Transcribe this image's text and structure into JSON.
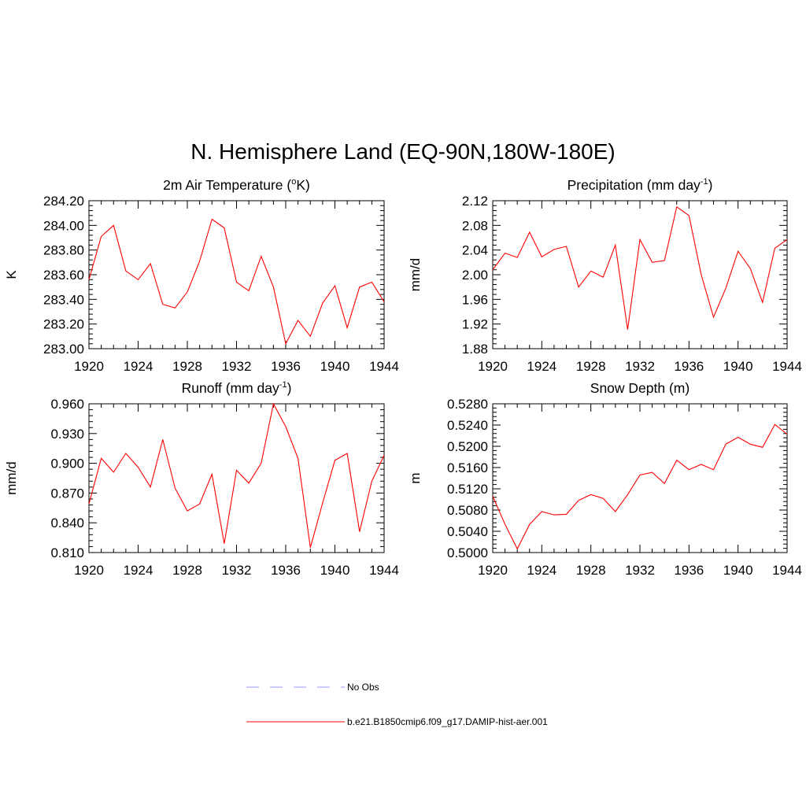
{
  "title": "N. Hemisphere Land (EQ-90N,180W-180E)",
  "colors": {
    "model_line": "#ff0000",
    "obs_line": "#9999ff",
    "axes": "#000000"
  },
  "legend": {
    "entries": [
      {
        "label": "No Obs",
        "style": "dashed",
        "color": "#9999ff"
      },
      {
        "label": "b.e21.B1850cmip6.f09_g17.DAMIP-hist-aer.001",
        "style": "solid",
        "color": "#ff0000"
      }
    ]
  },
  "chart_data": [
    {
      "type": "line",
      "title_parts": [
        "2m Air Temperature (",
        "o",
        "K)"
      ],
      "ylabel": "K",
      "xlim": [
        1920,
        1944
      ],
      "ylim": [
        283.0,
        284.2
      ],
      "xticks": [
        1920,
        1924,
        1928,
        1932,
        1936,
        1940,
        1944
      ],
      "yticks": [
        283.0,
        283.2,
        283.4,
        283.6,
        283.8,
        284.0,
        284.2
      ],
      "ytick_labels": [
        "283.00",
        "283.20",
        "283.40",
        "283.60",
        "283.80",
        "284.00",
        "284.20"
      ],
      "x": [
        1920,
        1921,
        1922,
        1923,
        1924,
        1925,
        1926,
        1927,
        1928,
        1929,
        1930,
        1931,
        1932,
        1933,
        1934,
        1935,
        1936,
        1937,
        1938,
        1939,
        1940,
        1941,
        1942,
        1943,
        1944
      ],
      "series": [
        {
          "name": "b.e21.B1850cmip6.f09_g17.DAMIP-hist-aer.001",
          "values": [
            283.56,
            283.91,
            284.0,
            283.63,
            283.56,
            283.69,
            283.36,
            283.33,
            283.46,
            283.71,
            284.05,
            283.98,
            283.54,
            283.47,
            283.75,
            283.5,
            283.04,
            283.23,
            283.1,
            283.37,
            283.51,
            283.17,
            283.5,
            283.54,
            283.38
          ]
        }
      ]
    },
    {
      "type": "line",
      "title_parts": [
        "Precipitation (mm day",
        "-1",
        ")"
      ],
      "ylabel": "mm/d",
      "xlim": [
        1920,
        1944
      ],
      "ylim": [
        1.88,
        2.12
      ],
      "xticks": [
        1920,
        1924,
        1928,
        1932,
        1936,
        1940,
        1944
      ],
      "yticks": [
        1.88,
        1.92,
        1.96,
        2.0,
        2.04,
        2.08,
        2.12
      ],
      "ytick_labels": [
        "1.88",
        "1.92",
        "1.96",
        "2.00",
        "2.04",
        "2.08",
        "2.12"
      ],
      "x": [
        1920,
        1921,
        1922,
        1923,
        1924,
        1925,
        1926,
        1927,
        1928,
        1929,
        1930,
        1931,
        1932,
        1933,
        1934,
        1935,
        1936,
        1937,
        1938,
        1939,
        1940,
        1941,
        1942,
        1943,
        1944
      ],
      "series": [
        {
          "name": "b.e21.B1850cmip6.f09_g17.DAMIP-hist-aer.001",
          "values": [
            2.008,
            2.035,
            2.028,
            2.069,
            2.029,
            2.041,
            2.046,
            1.98,
            2.006,
            1.996,
            2.048,
            1.911,
            2.057,
            2.02,
            2.023,
            2.11,
            2.096,
            2.0,
            1.931,
            1.978,
            2.038,
            2.01,
            1.955,
            2.043,
            2.057
          ]
        }
      ]
    },
    {
      "type": "line",
      "title_parts": [
        "Runoff (mm day",
        "-1",
        ")"
      ],
      "ylabel": "mm/d",
      "xlim": [
        1920,
        1944
      ],
      "ylim": [
        0.81,
        0.96
      ],
      "xticks": [
        1920,
        1924,
        1928,
        1932,
        1936,
        1940,
        1944
      ],
      "yticks": [
        0.81,
        0.84,
        0.87,
        0.9,
        0.93,
        0.96
      ],
      "ytick_labels": [
        "0.810",
        "0.840",
        "0.870",
        "0.900",
        "0.930",
        "0.960"
      ],
      "x": [
        1920,
        1921,
        1922,
        1923,
        1924,
        1925,
        1926,
        1927,
        1928,
        1929,
        1930,
        1931,
        1932,
        1933,
        1934,
        1935,
        1936,
        1937,
        1938,
        1939,
        1940,
        1941,
        1942,
        1943,
        1944
      ],
      "series": [
        {
          "name": "b.e21.B1850cmip6.f09_g17.DAMIP-hist-aer.001",
          "values": [
            0.859,
            0.905,
            0.891,
            0.91,
            0.896,
            0.876,
            0.924,
            0.875,
            0.852,
            0.859,
            0.889,
            0.819,
            0.893,
            0.88,
            0.9,
            0.96,
            0.937,
            0.905,
            0.815,
            0.86,
            0.903,
            0.91,
            0.831,
            0.882,
            0.908
          ]
        }
      ]
    },
    {
      "type": "line",
      "title_parts": [
        "Snow Depth (m)"
      ],
      "ylabel": "m",
      "xlim": [
        1920,
        1944
      ],
      "ylim": [
        0.5,
        0.528
      ],
      "xticks": [
        1920,
        1924,
        1928,
        1932,
        1936,
        1940,
        1944
      ],
      "yticks": [
        0.5,
        0.504,
        0.508,
        0.512,
        0.516,
        0.52,
        0.524,
        0.528
      ],
      "ytick_labels": [
        "0.5000",
        "0.5040",
        "0.5080",
        "0.5120",
        "0.5160",
        "0.5200",
        "0.5240",
        "0.5280"
      ],
      "x": [
        1920,
        1921,
        1922,
        1923,
        1924,
        1925,
        1926,
        1927,
        1928,
        1929,
        1930,
        1931,
        1932,
        1933,
        1934,
        1935,
        1936,
        1937,
        1938,
        1939,
        1940,
        1941,
        1942,
        1943,
        1944
      ],
      "series": [
        {
          "name": "b.e21.B1850cmip6.f09_g17.DAMIP-hist-aer.001",
          "values": [
            0.5106,
            0.5053,
            0.5007,
            0.5053,
            0.5077,
            0.5071,
            0.5072,
            0.5098,
            0.5109,
            0.5102,
            0.5077,
            0.5109,
            0.5146,
            0.5151,
            0.513,
            0.5174,
            0.5156,
            0.5166,
            0.5156,
            0.5204,
            0.5217,
            0.5204,
            0.5198,
            0.5241,
            0.5223
          ]
        }
      ]
    }
  ]
}
